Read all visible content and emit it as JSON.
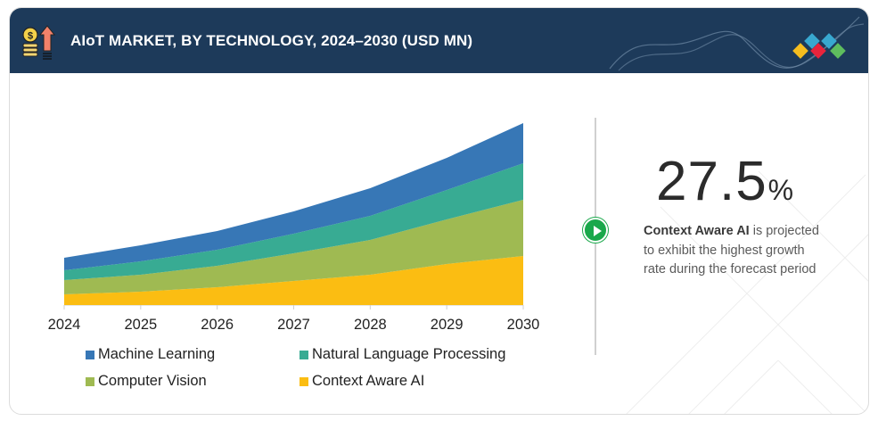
{
  "header": {
    "title": "AIoT MARKET, BY TECHNOLOGY, 2024–2030 (USD MN)",
    "icon": "coins-growth-icon",
    "logo": "diamond-logo",
    "logo_colors": [
      "#f5bd1f",
      "#38a8d0",
      "#e8243c",
      "#38a8d0",
      "#5ebd5e"
    ]
  },
  "chart_data": {
    "type": "area",
    "stacked": true,
    "title": "AIoT MARKET, BY TECHNOLOGY, 2024–2030 (USD MN)",
    "xlabel": "",
    "ylabel": "",
    "y_axis_shown": false,
    "units_note": "relative units (no y-axis values shown)",
    "grid": false,
    "legend_position": "bottom",
    "categories": [
      "2024",
      "2025",
      "2026",
      "2027",
      "2028",
      "2029",
      "2030"
    ],
    "series": [
      {
        "name": "Context Aware AI",
        "color": "#fbbd12",
        "values": [
          12,
          15,
          20,
          27,
          34,
          46,
          55
        ]
      },
      {
        "name": "Computer Vision",
        "color": "#9fba52",
        "values": [
          16,
          19,
          24,
          31,
          39,
          50,
          63
        ]
      },
      {
        "name": "Natural Language Processing",
        "color": "#38ab93",
        "values": [
          11,
          15,
          18,
          22,
          27,
          33,
          41
        ]
      },
      {
        "name": "Machine Learning",
        "color": "#3777b6",
        "values": [
          14,
          18,
          21,
          25,
          31,
          36,
          45
        ]
      }
    ],
    "ylim": [
      0,
      210
    ],
    "legend": [
      {
        "label": "Machine Learning",
        "color": "#3777b6"
      },
      {
        "label": "Natural Language Processing",
        "color": "#38ab93"
      },
      {
        "label": "Computer Vision",
        "color": "#9fba52"
      },
      {
        "label": "Context Aware AI",
        "color": "#fbbd12"
      }
    ]
  },
  "highlight": {
    "value": "27.5",
    "unit": "%",
    "subject": "Context Aware AI",
    "description_line1": " is projected",
    "description_line2": "to exhibit the highest growth",
    "description_line3": "rate during the forecast period",
    "marker_icon": "play-icon",
    "marker_color": "#1aa84b"
  }
}
